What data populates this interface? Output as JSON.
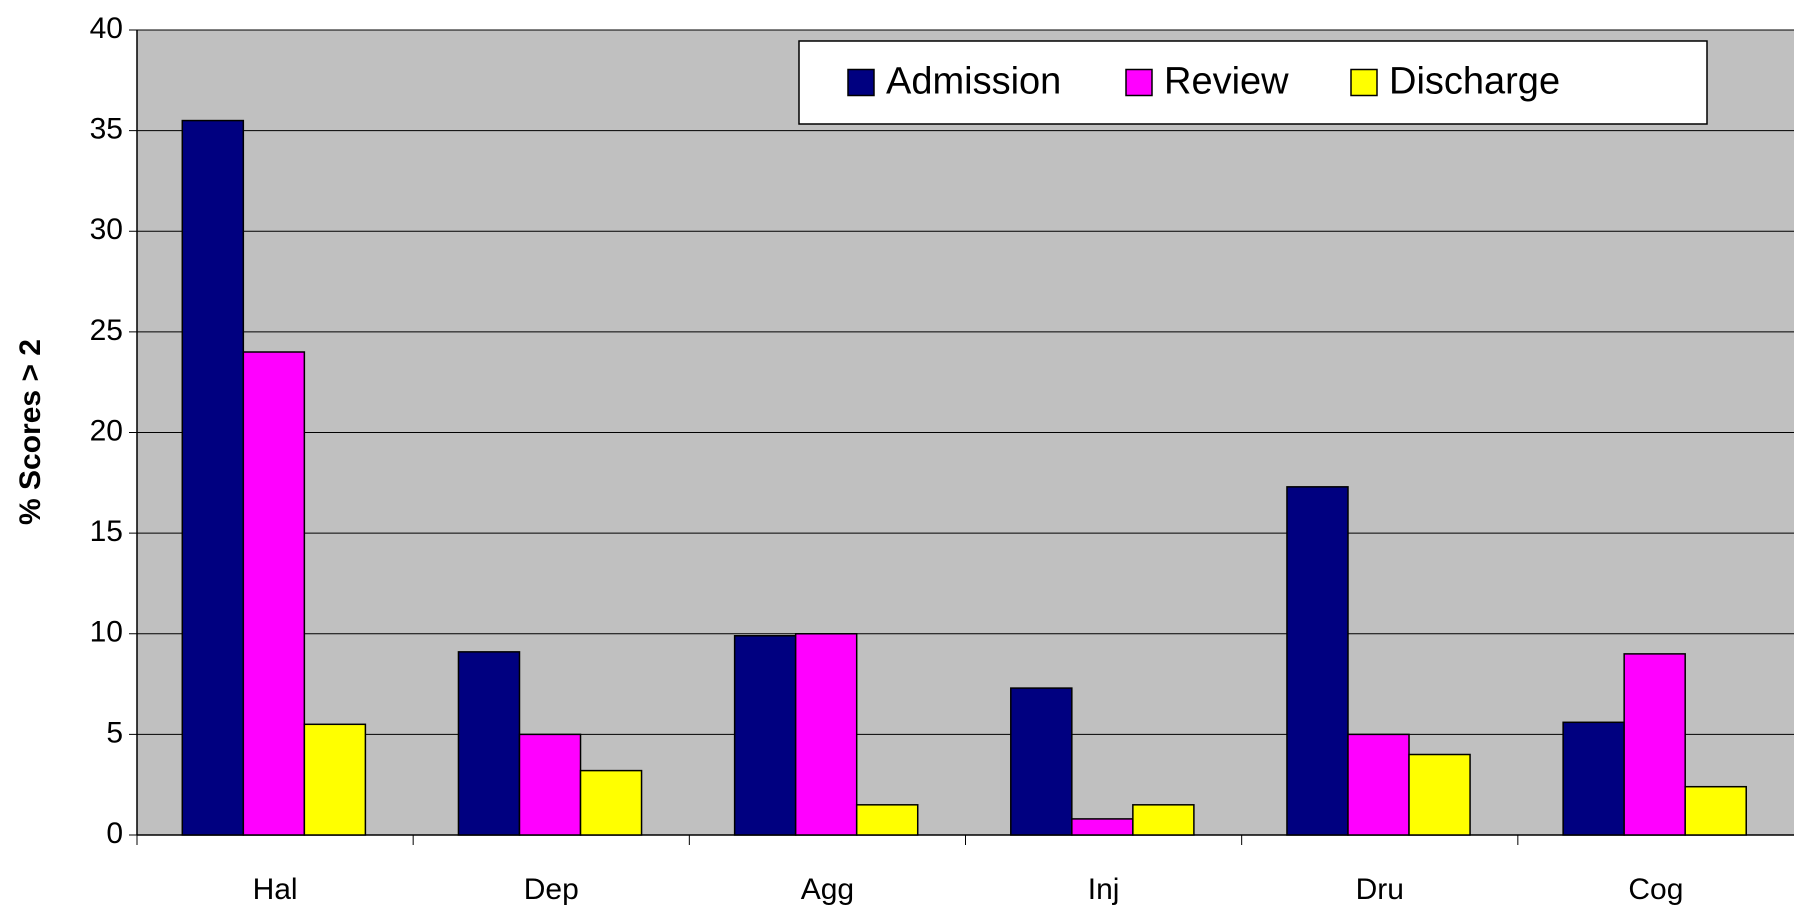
{
  "chart_data": {
    "type": "bar",
    "y_label": "%  Scores > 2",
    "categories": [
      "Hal",
      "Dep",
      "Agg",
      "Inj",
      "Dru",
      "Cog"
    ],
    "series": [
      {
        "name": "Admission",
        "color": "#000080",
        "values": [
          35.5,
          9.1,
          9.9,
          7.3,
          17.3,
          5.6
        ]
      },
      {
        "name": "Review",
        "color": "#ff00ff",
        "values": [
          24,
          5,
          10,
          0.8,
          5,
          9
        ]
      },
      {
        "name": "Discharge",
        "color": "#ffff00",
        "values": [
          5.5,
          3.2,
          1.5,
          1.5,
          4,
          2.4
        ]
      }
    ],
    "ylim": [
      0,
      40
    ],
    "yticks": [
      0,
      5,
      10,
      15,
      20,
      25,
      30,
      35,
      40
    ],
    "grid": true,
    "legend": "top-right",
    "background": "#c0c0c0"
  }
}
